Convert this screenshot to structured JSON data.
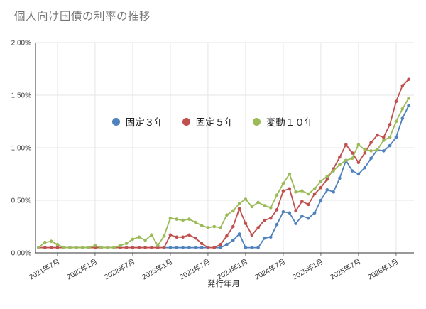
{
  "title": "個人向け国債の利率の推移",
  "chart_data": {
    "type": "line",
    "xlabel": "発行年月",
    "ylabel": "",
    "ylim": [
      0,
      2
    ],
    "grid": true,
    "legend_position": "top-center-inset",
    "y_tick_values": [
      0,
      0.5,
      1.0,
      1.5,
      2.0
    ],
    "y_tick_labels": [
      "0.00%",
      "0.50%",
      "1.00%",
      "1.50%",
      "2.00%"
    ],
    "x_tick_indices": [
      3,
      9,
      15,
      21,
      27,
      33,
      39,
      45,
      51,
      57
    ],
    "x_tick_labels": [
      "2021年7月",
      "2022年1月",
      "2022年7月",
      "2023年1月",
      "2023年7月",
      "2024年1月",
      "2024年7月",
      "2025年1月",
      "2025年7月",
      "2026年1月"
    ],
    "x": [
      "2021年4月",
      "2021年5月",
      "2021年6月",
      "2021年7月",
      "2021年8月",
      "2021年9月",
      "2021年10月",
      "2021年11月",
      "2021年12月",
      "2022年1月",
      "2022年2月",
      "2022年3月",
      "2022年4月",
      "2022年5月",
      "2022年6月",
      "2022年7月",
      "2022年8月",
      "2022年9月",
      "2022年10月",
      "2022年11月",
      "2022年12月",
      "2023年1月",
      "2023年2月",
      "2023年3月",
      "2023年4月",
      "2023年5月",
      "2023年6月",
      "2023年7月",
      "2023年8月",
      "2023年9月",
      "2023年10月",
      "2023年11月",
      "2023年12月",
      "2024年1月",
      "2024年2月",
      "2024年3月",
      "2024年4月",
      "2024年5月",
      "2024年6月",
      "2024年7月",
      "2024年8月",
      "2024年9月",
      "2024年10月",
      "2024年11月",
      "2024年12月",
      "2025年1月",
      "2025年2月",
      "2025年3月",
      "2025年4月",
      "2025年5月",
      "2025年6月",
      "2025年7月",
      "2025年8月",
      "2025年9月",
      "2025年10月",
      "2025年11月",
      "2025年12月",
      "2026年1月",
      "2026年2月",
      "2026年3月"
    ],
    "series": [
      {
        "id": "kotei-3y",
        "name": "固定３年",
        "color": "#4F81BD",
        "values": [
          0.05,
          0.05,
          0.05,
          0.05,
          0.05,
          0.05,
          0.05,
          0.05,
          0.05,
          0.05,
          0.05,
          0.05,
          0.05,
          0.05,
          0.05,
          0.05,
          0.05,
          0.05,
          0.05,
          0.05,
          0.05,
          0.05,
          0.05,
          0.05,
          0.05,
          0.05,
          0.05,
          0.05,
          0.05,
          0.05,
          0.08,
          0.12,
          0.18,
          0.05,
          0.05,
          0.05,
          0.14,
          0.15,
          0.27,
          0.39,
          0.38,
          0.28,
          0.35,
          0.33,
          0.38,
          0.5,
          0.6,
          0.58,
          0.71,
          0.88,
          0.78,
          0.75,
          0.81,
          0.9,
          0.98,
          0.97,
          1.02,
          1.1,
          1.28,
          1.4
        ]
      },
      {
        "id": "kotei-5y",
        "name": "固定５年",
        "color": "#C0504D",
        "values": [
          0.05,
          0.05,
          0.05,
          0.05,
          0.05,
          0.05,
          0.05,
          0.05,
          0.05,
          0.05,
          0.05,
          0.05,
          0.05,
          0.05,
          0.05,
          0.05,
          0.05,
          0.05,
          0.05,
          0.05,
          0.05,
          0.17,
          0.15,
          0.15,
          0.17,
          0.14,
          0.09,
          0.05,
          0.05,
          0.08,
          0.16,
          0.25,
          0.42,
          0.28,
          0.17,
          0.24,
          0.31,
          0.33,
          0.41,
          0.59,
          0.61,
          0.4,
          0.49,
          0.46,
          0.56,
          0.62,
          0.7,
          0.8,
          0.91,
          1.03,
          0.95,
          0.86,
          0.95,
          1.05,
          1.12,
          1.1,
          1.22,
          1.44,
          1.59,
          1.65
        ]
      },
      {
        "id": "hendo-10y",
        "name": "変動１０年",
        "color": "#9BBB59",
        "values": [
          0.05,
          0.1,
          0.11,
          0.08,
          0.05,
          0.05,
          0.05,
          0.05,
          0.05,
          0.07,
          0.05,
          0.05,
          0.05,
          0.07,
          0.09,
          0.13,
          0.15,
          0.12,
          0.17,
          0.07,
          0.16,
          0.33,
          0.32,
          0.31,
          0.32,
          0.29,
          0.26,
          0.24,
          0.25,
          0.24,
          0.36,
          0.4,
          0.47,
          0.51,
          0.44,
          0.48,
          0.45,
          0.43,
          0.55,
          0.66,
          0.75,
          0.58,
          0.59,
          0.56,
          0.61,
          0.68,
          0.73,
          0.78,
          0.84,
          0.88,
          0.9,
          1.03,
          0.98,
          0.97,
          0.98,
          1.07,
          1.1,
          1.25,
          1.37,
          1.47
        ]
      }
    ]
  }
}
